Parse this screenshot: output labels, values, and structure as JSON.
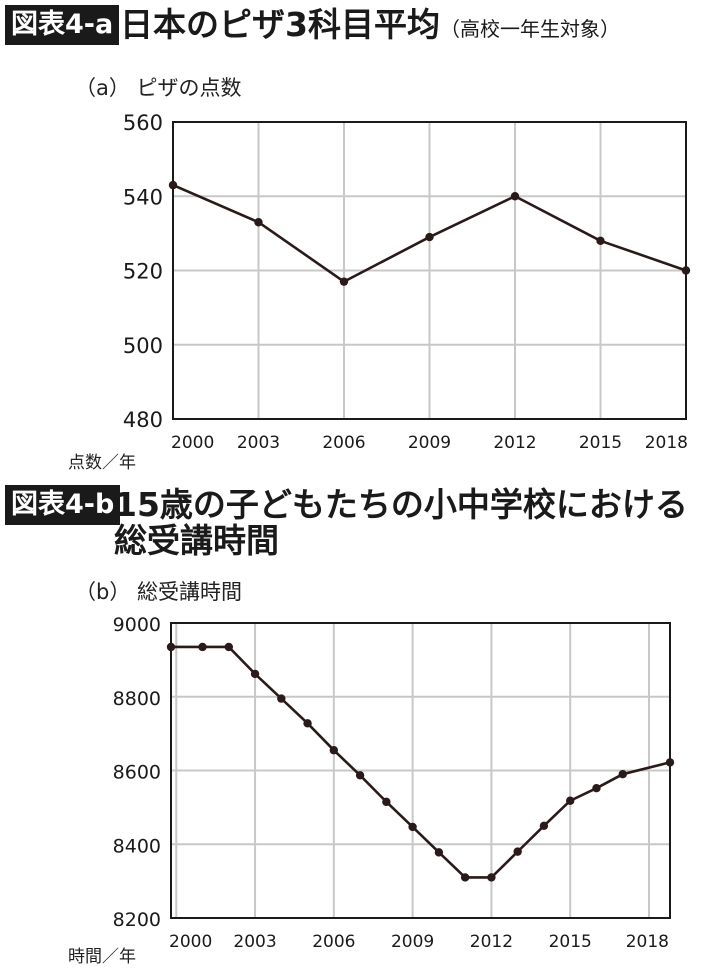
{
  "figures": [
    {
      "tag": "図表4-a",
      "title": "日本のピザ3科目平均",
      "subtitle": "（高校一年生対象）",
      "panel_label": "（a） ピザの点数",
      "axis_unit": "点数／年"
    },
    {
      "tag": "図表4-b",
      "title_line1": "15歳の子どもたちの小中学校における",
      "title_line2": "総受講時間",
      "panel_label": "（b） 総受講時間",
      "axis_unit": "時間／年"
    }
  ],
  "colors": {
    "line": "#2a1a1a",
    "grid": "#c8c8c8",
    "frame": "#1a1a1a",
    "tag_bg": "#1a1a1a"
  },
  "chart_data": [
    {
      "type": "line",
      "title": "",
      "xlabel": "年",
      "ylabel": "点数",
      "xlim": [
        2000,
        2018
      ],
      "ylim": [
        480,
        560
      ],
      "grid": true,
      "yticks": [
        480,
        500,
        520,
        540,
        560
      ],
      "xticks": [
        2000,
        2003,
        2006,
        2009,
        2012,
        2015,
        2018
      ],
      "series": [
        {
          "x": [
            2000,
            2003,
            2006,
            2009,
            2012,
            2015,
            2018
          ],
          "values": [
            543,
            533,
            517,
            529,
            540,
            528,
            520
          ]
        }
      ]
    },
    {
      "type": "line",
      "title": "",
      "xlabel": "年",
      "ylabel": "時間",
      "xlim": [
        1999.8,
        2018.8
      ],
      "ylim": [
        8200,
        9000
      ],
      "grid": true,
      "yticks": [
        8200,
        8400,
        8600,
        8800,
        9000
      ],
      "xticks": [
        2000,
        2003,
        2006,
        2009,
        2012,
        2015,
        2018
      ],
      "series": [
        {
          "x": [
            1999.8,
            2001,
            2002,
            2003,
            2004,
            2005,
            2006,
            2007,
            2008,
            2009,
            2010,
            2011,
            2012,
            2013,
            2014,
            2015,
            2016,
            2017,
            2018.8
          ],
          "values": [
            8935,
            8935,
            8935,
            8862,
            8795,
            8728,
            8655,
            8587,
            8515,
            8447,
            8378,
            8310,
            8310,
            8380,
            8450,
            8518,
            8552,
            8590,
            8622
          ]
        }
      ]
    }
  ]
}
